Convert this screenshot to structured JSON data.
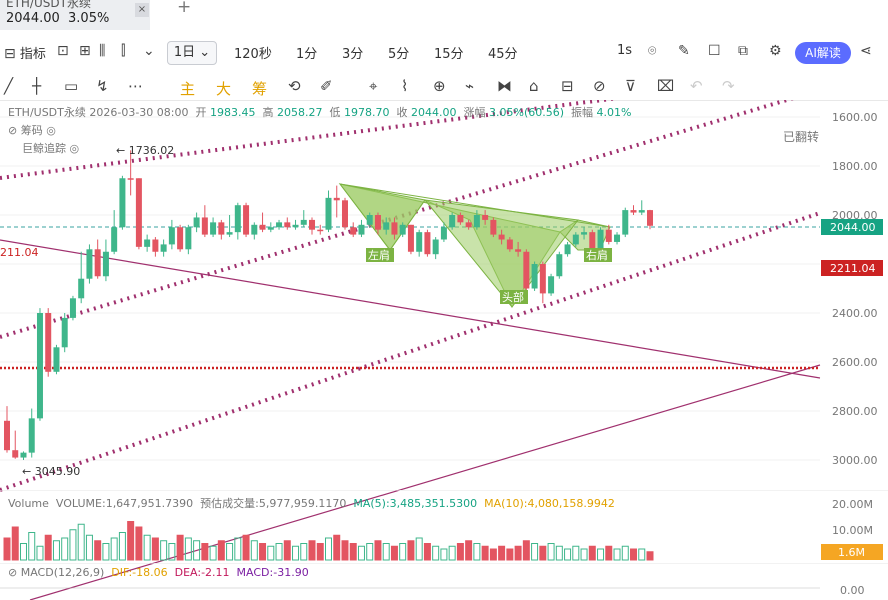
{
  "tab": {
    "title": "ETH/USDT永续",
    "price": "2044.00",
    "change": "3.05%",
    "close": "×",
    "plus": "+"
  },
  "toolbar": {
    "indicators": "指标",
    "timeframes": [
      "1日",
      "120秒",
      "1分",
      "3分",
      "5分",
      "15分",
      "45分"
    ],
    "seconds": "1s",
    "ai": "AI解读"
  },
  "tools": {
    "main": "主",
    "big": "大",
    "chip": "筹"
  },
  "info": {
    "symbol": "ETH/USDT永续",
    "date": "2026-03-30 08:00",
    "open_label": "开",
    "open": "1983.45",
    "high_label": "高",
    "high": "2058.27",
    "low_label": "低",
    "low": "1978.70",
    "close_label": "收",
    "close": "2044.00",
    "chg_label": "涨幅",
    "chg": "3.05%(60.56)",
    "amp_label": "振幅",
    "amp": "4.01%"
  },
  "overlay": {
    "chips": "筹码",
    "whale": "巨鲸追踪",
    "flipped": "已翻转"
  },
  "chart_data": {
    "type": "candlestick",
    "y_axis_inverted": true,
    "y_ticks": [
      "1600.00",
      "1800.00",
      "2000.00",
      "2200.00",
      "2400.00",
      "2600.00",
      "2800.00",
      "3000.00"
    ],
    "price_tags": {
      "current": "2044.00",
      "line": "2211.04",
      "line_left": "211.04"
    },
    "annotations": {
      "high_mark": "1736.02",
      "low_mark": "3045.90",
      "left_shoulder": "左肩",
      "head": "头部",
      "right_shoulder": "右肩"
    },
    "volume": {
      "label": "Volume",
      "vol": "VOLUME:1,647,951.7390",
      "est": "预估成交量:5,977,959.1170",
      "ma5": "MA(5):3,485,351.5300",
      "ma10": "MA(10):4,080,158.9942",
      "ticks": [
        "20.00M",
        "10.00M"
      ],
      "current": "1.6M"
    },
    "macd": {
      "label": "MACD(12,26,9)",
      "dif": "DIF:-18.06",
      "dea": "DEA:-2.11",
      "macd": "MACD:-31.90",
      "tick": "0.00"
    },
    "candles": [
      [
        2840,
        2960,
        2780,
        2970
      ],
      [
        2960,
        2990,
        2880,
        2995
      ],
      [
        2990,
        2970,
        2965,
        3000
      ],
      [
        2970,
        2830,
        2790,
        2990
      ],
      [
        2830,
        2400,
        2380,
        2840
      ],
      [
        2400,
        2640,
        2380,
        2660
      ],
      [
        2640,
        2540,
        2530,
        2650
      ],
      [
        2540,
        2420,
        2400,
        2560
      ],
      [
        2420,
        2340,
        2330,
        2430
      ],
      [
        2340,
        2260,
        2150,
        2360
      ],
      [
        2260,
        2140,
        2120,
        2280
      ],
      [
        2140,
        2250,
        2100,
        2260
      ],
      [
        2250,
        2150,
        2100,
        2270
      ],
      [
        2150,
        2050,
        1980,
        2160
      ],
      [
        2050,
        1850,
        1840,
        2060
      ],
      [
        1850,
        1850,
        1736,
        1920
      ],
      [
        1850,
        2130,
        1850,
        2140
      ],
      [
        2130,
        2100,
        2080,
        2150
      ],
      [
        2100,
        2150,
        2090,
        2170
      ],
      [
        2150,
        2120,
        2100,
        2170
      ],
      [
        2120,
        2050,
        2020,
        2140
      ],
      [
        2050,
        2140,
        2040,
        2150
      ],
      [
        2140,
        2050,
        2040,
        2160
      ],
      [
        2050,
        2010,
        1990,
        2070
      ],
      [
        2010,
        2080,
        1960,
        2090
      ],
      [
        2080,
        2030,
        2010,
        2090
      ],
      [
        2030,
        2080,
        2020,
        2100
      ],
      [
        2080,
        2070,
        2000,
        2090
      ],
      [
        2070,
        1960,
        1950,
        2100
      ],
      [
        1960,
        2080,
        1950,
        2090
      ],
      [
        2080,
        2040,
        2030,
        2100
      ],
      [
        2040,
        2060,
        1990,
        2070
      ],
      [
        2060,
        2050,
        2030,
        2070
      ],
      [
        2050,
        2030,
        2020,
        2060
      ],
      [
        2030,
        2050,
        2010,
        2060
      ],
      [
        2050,
        2040,
        2020,
        2060
      ],
      [
        2040,
        2020,
        1980,
        2050
      ],
      [
        2020,
        2060,
        2010,
        2080
      ],
      [
        2060,
        2060,
        2040,
        2080
      ],
      [
        2060,
        1930,
        1900,
        2070
      ],
      [
        1930,
        1940,
        1880,
        2010
      ],
      [
        1940,
        2050,
        1930,
        2060
      ],
      [
        2050,
        2080,
        2030,
        2090
      ],
      [
        2080,
        2040,
        2020,
        2090
      ],
      [
        2040,
        2000,
        1990,
        2050
      ],
      [
        2000,
        2060,
        1990,
        2080
      ],
      [
        2060,
        2030,
        2010,
        2080
      ],
      [
        2030,
        2080,
        2010,
        2100
      ],
      [
        2080,
        2040,
        2030,
        2090
      ],
      [
        2040,
        2150,
        2040,
        2160
      ],
      [
        2150,
        2070,
        2060,
        2170
      ],
      [
        2070,
        2160,
        2060,
        2170
      ],
      [
        2160,
        2100,
        2090,
        2180
      ],
      [
        2100,
        2050,
        2030,
        2110
      ],
      [
        2050,
        2000,
        1990,
        2060
      ],
      [
        2000,
        2030,
        1990,
        2040
      ],
      [
        2030,
        2050,
        2020,
        2060
      ],
      [
        2050,
        2000,
        1980,
        2060
      ],
      [
        2000,
        2020,
        1980,
        2040
      ],
      [
        2020,
        2080,
        2010,
        2090
      ],
      [
        2080,
        2100,
        2060,
        2120
      ],
      [
        2100,
        2140,
        2090,
        2150
      ],
      [
        2140,
        2150,
        2110,
        2170
      ],
      [
        2150,
        2300,
        2140,
        2330
      ],
      [
        2300,
        2200,
        2190,
        2310
      ],
      [
        2200,
        2320,
        2190,
        2360
      ],
      [
        2320,
        2250,
        2240,
        2330
      ],
      [
        2250,
        2160,
        2150,
        2260
      ],
      [
        2160,
        2120,
        2110,
        2170
      ],
      [
        2120,
        2080,
        2070,
        2130
      ],
      [
        2080,
        2070,
        2050,
        2100
      ],
      [
        2070,
        2140,
        2060,
        2150
      ],
      [
        2140,
        2060,
        2050,
        2150
      ],
      [
        2060,
        2110,
        2040,
        2120
      ],
      [
        2110,
        2080,
        2070,
        2120
      ],
      [
        2080,
        1980,
        1970,
        2090
      ],
      [
        1980,
        1990,
        1960,
        2000
      ],
      [
        1990,
        1980,
        1940,
        2000
      ],
      [
        1980,
        2044,
        1979,
        2058
      ]
    ],
    "volumes": [
      8,
      12,
      6,
      10,
      5,
      9,
      7,
      8,
      11,
      13,
      9,
      7,
      6,
      8,
      10,
      14,
      12,
      9,
      8,
      7,
      6,
      9,
      8,
      7,
      6,
      5,
      7,
      6,
      8,
      9,
      7,
      6,
      5,
      6,
      7,
      5,
      6,
      7,
      6,
      8,
      9,
      7,
      6,
      5,
      6,
      7,
      6,
      5,
      6,
      7,
      8,
      6,
      5,
      4,
      5,
      6,
      7,
      6,
      5,
      4,
      5,
      4,
      5,
      7,
      6,
      5,
      6,
      5,
      4,
      5,
      4,
      5,
      4,
      5,
      4,
      5,
      4,
      4,
      3
    ]
  }
}
